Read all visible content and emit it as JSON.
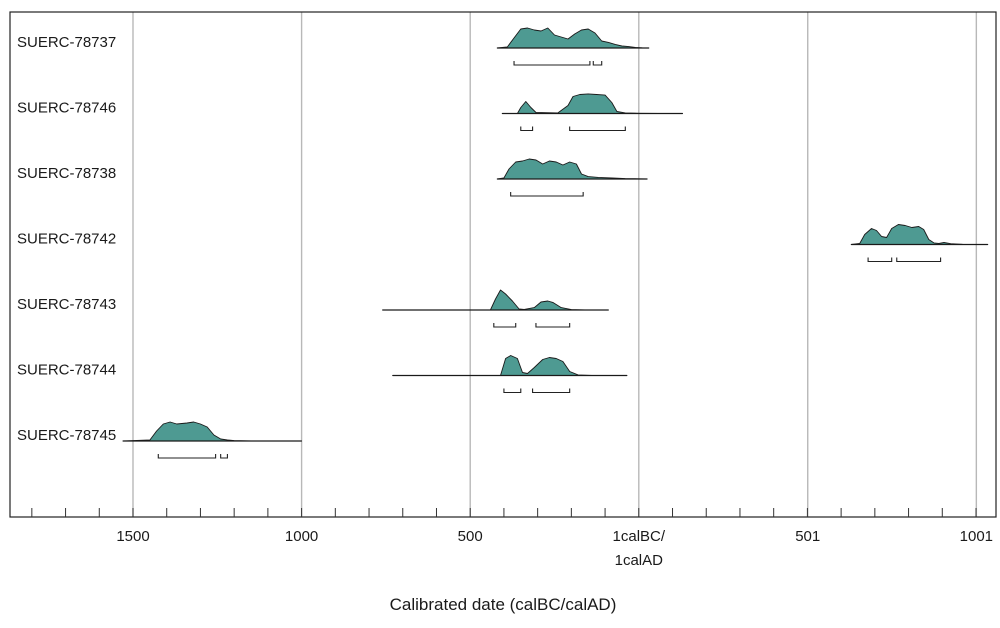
{
  "chart_data": {
    "type": "area",
    "subtype": "calibrated radiocarbon probability distributions (OxCal-style multiplot)",
    "xlabel": "Calibrated date (calBC/calAD)",
    "xlim": [
      -1800,
      1030
    ],
    "x_ticks": [
      {
        "value": -1500,
        "label": "1500",
        "label2": ""
      },
      {
        "value": -1000,
        "label": "1000",
        "label2": ""
      },
      {
        "value": -500,
        "label": "500",
        "label2": ""
      },
      {
        "value": 0,
        "label": "1calBC/",
        "label2": "1calAD"
      },
      {
        "value": 501,
        "label": "501",
        "label2": ""
      },
      {
        "value": 1001,
        "label": "1001",
        "label2": ""
      }
    ],
    "minor_tick_step": 100,
    "grid": true,
    "fill_color": "#4e9a92",
    "outline_color": "#1a1a1a",
    "series": [
      {
        "name": "SUERC-78737",
        "range": [
          -420,
          30
        ],
        "dist": [
          [
            -420,
            0
          ],
          [
            -390,
            0.05
          ],
          [
            -370,
            0.5
          ],
          [
            -350,
            0.95
          ],
          [
            -330,
            1.0
          ],
          [
            -310,
            0.9
          ],
          [
            -290,
            0.85
          ],
          [
            -270,
            1.0
          ],
          [
            -250,
            0.65
          ],
          [
            -230,
            0.55
          ],
          [
            -210,
            0.45
          ],
          [
            -190,
            0.7
          ],
          [
            -170,
            0.9
          ],
          [
            -150,
            0.95
          ],
          [
            -130,
            0.75
          ],
          [
            -110,
            0.35
          ],
          [
            -90,
            0.28
          ],
          [
            -70,
            0.18
          ],
          [
            -50,
            0.1
          ],
          [
            -30,
            0.07
          ],
          [
            -10,
            0.03
          ],
          [
            10,
            0.01
          ],
          [
            30,
            0
          ]
        ],
        "intervals": [
          [
            -370,
            -145
          ],
          [
            -135,
            -110
          ]
        ]
      },
      {
        "name": "SUERC-78746",
        "range": [
          -405,
          130
        ],
        "dist": [
          [
            -405,
            0
          ],
          [
            -360,
            0
          ],
          [
            -350,
            0.3
          ],
          [
            -335,
            0.6
          ],
          [
            -320,
            0.3
          ],
          [
            -305,
            0.05
          ],
          [
            -240,
            0.03
          ],
          [
            -210,
            0.4
          ],
          [
            -195,
            0.85
          ],
          [
            -175,
            0.95
          ],
          [
            -150,
            0.98
          ],
          [
            -125,
            0.95
          ],
          [
            -100,
            0.92
          ],
          [
            -80,
            0.55
          ],
          [
            -65,
            0.1
          ],
          [
            -40,
            0.03
          ],
          [
            0,
            0.01
          ],
          [
            60,
            0
          ],
          [
            130,
            0
          ]
        ],
        "intervals": [
          [
            -350,
            -315
          ],
          [
            -205,
            -40
          ]
        ]
      },
      {
        "name": "SUERC-78738",
        "range": [
          -420,
          25
        ],
        "dist": [
          [
            -420,
            0
          ],
          [
            -400,
            0.05
          ],
          [
            -385,
            0.5
          ],
          [
            -365,
            0.85
          ],
          [
            -345,
            0.9
          ],
          [
            -325,
            1.0
          ],
          [
            -305,
            0.95
          ],
          [
            -285,
            0.75
          ],
          [
            -265,
            0.9
          ],
          [
            -245,
            0.85
          ],
          [
            -225,
            0.7
          ],
          [
            -205,
            0.85
          ],
          [
            -185,
            0.75
          ],
          [
            -170,
            0.25
          ],
          [
            -150,
            0.12
          ],
          [
            -120,
            0.08
          ],
          [
            -80,
            0.05
          ],
          [
            -40,
            0.02
          ],
          [
            0,
            0.01
          ],
          [
            25,
            0
          ]
        ],
        "intervals": [
          [
            -380,
            -165
          ]
        ]
      },
      {
        "name": "SUERC-78742",
        "range": [
          630,
          1035
        ],
        "dist": [
          [
            630,
            0
          ],
          [
            655,
            0.05
          ],
          [
            670,
            0.5
          ],
          [
            690,
            0.8
          ],
          [
            705,
            0.7
          ],
          [
            720,
            0.4
          ],
          [
            735,
            0.35
          ],
          [
            750,
            0.8
          ],
          [
            770,
            1.0
          ],
          [
            790,
            0.95
          ],
          [
            810,
            0.85
          ],
          [
            830,
            0.9
          ],
          [
            845,
            0.75
          ],
          [
            860,
            0.25
          ],
          [
            875,
            0.08
          ],
          [
            890,
            0.05
          ],
          [
            905,
            0.1
          ],
          [
            925,
            0.04
          ],
          [
            960,
            0.01
          ],
          [
            1000,
            0
          ],
          [
            1035,
            0
          ]
        ],
        "intervals": [
          [
            680,
            750
          ],
          [
            765,
            895
          ]
        ]
      },
      {
        "name": "SUERC-78743",
        "range": [
          -760,
          -90
        ],
        "dist": [
          [
            -760,
            0
          ],
          [
            -440,
            0
          ],
          [
            -425,
            0.55
          ],
          [
            -410,
            1.0
          ],
          [
            -395,
            0.8
          ],
          [
            -375,
            0.45
          ],
          [
            -355,
            0.05
          ],
          [
            -340,
            0.03
          ],
          [
            -310,
            0.12
          ],
          [
            -290,
            0.4
          ],
          [
            -270,
            0.45
          ],
          [
            -255,
            0.38
          ],
          [
            -230,
            0.12
          ],
          [
            -200,
            0.02
          ],
          [
            -160,
            0
          ],
          [
            -90,
            0
          ]
        ],
        "intervals": [
          [
            -430,
            -365
          ],
          [
            -305,
            -205
          ]
        ]
      },
      {
        "name": "SUERC-78744",
        "range": [
          -730,
          -35
        ],
        "dist": [
          [
            -730,
            0
          ],
          [
            -410,
            0
          ],
          [
            -395,
            0.85
          ],
          [
            -380,
            1.0
          ],
          [
            -360,
            0.85
          ],
          [
            -345,
            0.15
          ],
          [
            -330,
            0.1
          ],
          [
            -310,
            0.4
          ],
          [
            -285,
            0.8
          ],
          [
            -265,
            0.9
          ],
          [
            -245,
            0.85
          ],
          [
            -225,
            0.7
          ],
          [
            -205,
            0.2
          ],
          [
            -180,
            0.03
          ],
          [
            -140,
            0
          ],
          [
            -35,
            0
          ]
        ],
        "intervals": [
          [
            -400,
            -350
          ],
          [
            -315,
            -205
          ]
        ]
      },
      {
        "name": "SUERC-78745",
        "range": [
          -1530,
          -1000
        ],
        "dist": [
          [
            -1530,
            0
          ],
          [
            -1450,
            0.05
          ],
          [
            -1430,
            0.5
          ],
          [
            -1410,
            0.85
          ],
          [
            -1390,
            0.95
          ],
          [
            -1370,
            0.85
          ],
          [
            -1340,
            0.9
          ],
          [
            -1320,
            0.95
          ],
          [
            -1300,
            0.85
          ],
          [
            -1280,
            0.7
          ],
          [
            -1260,
            0.3
          ],
          [
            -1240,
            0.1
          ],
          [
            -1220,
            0.05
          ],
          [
            -1200,
            0.02
          ],
          [
            -1150,
            0
          ],
          [
            -1000,
            0
          ]
        ],
        "intervals": [
          [
            -1425,
            -1255
          ],
          [
            -1240,
            -1220
          ]
        ]
      }
    ]
  }
}
